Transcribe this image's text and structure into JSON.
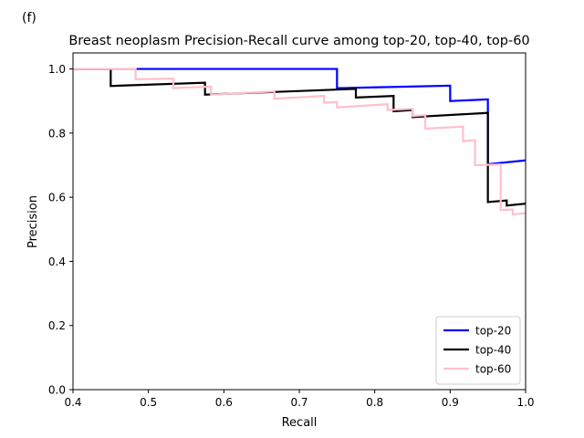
{
  "panel_label": "(f)",
  "chart_data": {
    "type": "line",
    "title": "Breast neoplasm Precision-Recall curve among top-20, top-40, top-60",
    "xlabel": "Recall",
    "ylabel": "Precision",
    "xlim": [
      0.4,
      1.0
    ],
    "ylim": [
      0.0,
      1.05
    ],
    "xticks": [
      0.4,
      0.5,
      0.6,
      0.7,
      0.8,
      0.9,
      1.0
    ],
    "xtick_labels": [
      "0.4",
      "0.5",
      "0.6",
      "0.7",
      "0.8",
      "0.9",
      "1.0"
    ],
    "yticks": [
      0.0,
      0.2,
      0.4,
      0.6,
      0.8,
      1.0
    ],
    "ytick_labels": [
      "0.0",
      "0.2",
      "0.4",
      "0.6",
      "0.8",
      "1.0"
    ],
    "grid": false,
    "legend_position": "lower-right",
    "series": [
      {
        "name": "top-20",
        "color": "#0000ff",
        "points": [
          [
            0.4,
            1.0
          ],
          [
            0.75,
            1.0
          ],
          [
            0.75,
            0.94
          ],
          [
            0.9,
            0.948
          ],
          [
            0.9,
            0.9
          ],
          [
            0.95,
            0.905
          ],
          [
            0.95,
            0.703
          ],
          [
            1.0,
            0.715
          ]
        ]
      },
      {
        "name": "top-40",
        "color": "#000000",
        "points": [
          [
            0.4,
            1.0
          ],
          [
            0.45,
            1.0
          ],
          [
            0.45,
            0.947
          ],
          [
            0.575,
            0.957
          ],
          [
            0.575,
            0.92
          ],
          [
            0.775,
            0.938
          ],
          [
            0.775,
            0.911
          ],
          [
            0.825,
            0.916
          ],
          [
            0.825,
            0.868
          ],
          [
            0.85,
            0.872
          ],
          [
            0.85,
            0.85
          ],
          [
            0.95,
            0.863
          ],
          [
            0.95,
            0.585
          ],
          [
            0.975,
            0.59
          ],
          [
            0.975,
            0.574
          ],
          [
            1.0,
            0.58
          ]
        ]
      },
      {
        "name": "top-60",
        "color": "#ffc0cb",
        "points": [
          [
            0.4,
            1.0
          ],
          [
            0.483,
            1.0
          ],
          [
            0.483,
            0.968
          ],
          [
            0.533,
            0.97
          ],
          [
            0.533,
            0.94
          ],
          [
            0.583,
            0.945
          ],
          [
            0.583,
            0.92
          ],
          [
            0.667,
            0.93
          ],
          [
            0.667,
            0.907
          ],
          [
            0.733,
            0.916
          ],
          [
            0.733,
            0.895
          ],
          [
            0.75,
            0.897
          ],
          [
            0.75,
            0.88
          ],
          [
            0.817,
            0.89
          ],
          [
            0.817,
            0.872
          ],
          [
            0.85,
            0.876
          ],
          [
            0.85,
            0.853
          ],
          [
            0.867,
            0.856
          ],
          [
            0.867,
            0.814
          ],
          [
            0.917,
            0.82
          ],
          [
            0.917,
            0.775
          ],
          [
            0.933,
            0.778
          ],
          [
            0.933,
            0.7
          ],
          [
            0.967,
            0.702
          ],
          [
            0.967,
            0.56
          ],
          [
            0.983,
            0.562
          ],
          [
            0.983,
            0.546
          ],
          [
            1.0,
            0.55
          ]
        ]
      }
    ]
  }
}
